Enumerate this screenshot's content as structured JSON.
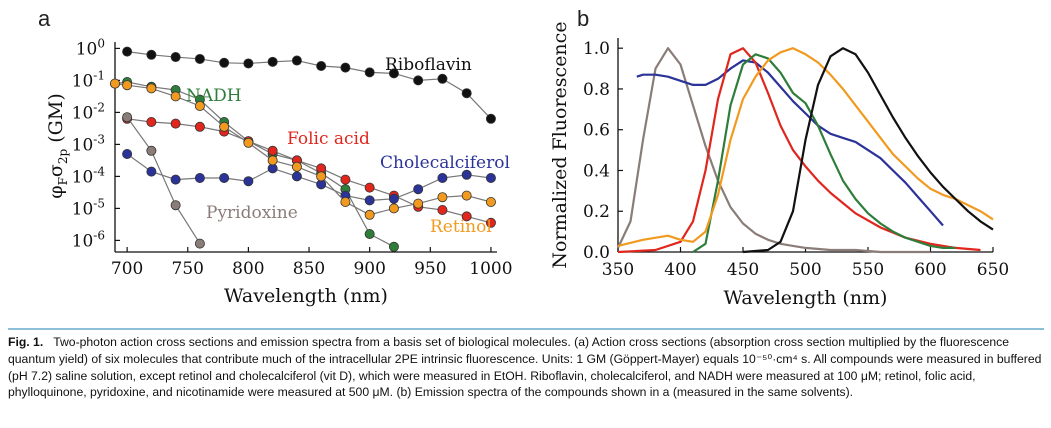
{
  "panel_a_label": "a",
  "panel_b_label": "b",
  "caption": {
    "figure_number": "Fig. 1.",
    "text": "Two-photon action cross sections and emission spectra from a basis set of biological molecules. (a) Action cross sections (absorption cross section multiplied by the fluorescence quantum yield) of six molecules that contribute much of the intracellular 2PE intrinsic fluorescence. Units: 1 GM (Göppert-Mayer) equals 10⁻⁵⁰·cm⁴ s. All compounds were measured in buffered (pH 7.2) saline solution, except retinol and cholecalciferol (vit D), which were measured in EtOH. Riboflavin, cholecalciferol, and NADH were measured at 100 μM; retinol, folic acid, phylloquinone, pyridoxine, and nicotinamide were measured at 500 μM. (b) Emission spectra of the compounds shown in a (measured in the same solvents)."
  },
  "chart_data": [
    {
      "type": "scatter",
      "panel": "a",
      "title": "",
      "xlabel": "Wavelength (nm)",
      "ylabel": "φFσ2p (GM)",
      "ylabel_parts": {
        "phi": "φ",
        "phi_sub": "F",
        "sigma": "σ",
        "sigma_sub": "2p",
        "unit": " (GM)"
      },
      "xlim": [
        690,
        1005
      ],
      "ylim_log10": [
        -6.3,
        0.2
      ],
      "xticks": [
        700,
        750,
        800,
        850,
        900,
        950,
        1000
      ],
      "yticks_exp": [
        0,
        -1,
        -2,
        -3,
        -4,
        -5,
        -6
      ],
      "ytick_base": "10",
      "series": [
        {
          "name": "Riboflavin",
          "color": "#111111",
          "x": [
            700,
            720,
            740,
            760,
            780,
            800,
            820,
            840,
            860,
            880,
            900,
            920,
            940,
            960,
            980,
            1000
          ],
          "y_log10": [
            -0.1,
            -0.2,
            -0.27,
            -0.33,
            -0.45,
            -0.47,
            -0.42,
            -0.38,
            -0.55,
            -0.6,
            -0.75,
            -0.78,
            -1.0,
            -0.95,
            -1.4,
            -2.2
          ],
          "label": "Riboflavin"
        },
        {
          "name": "NADH",
          "color": "#2e7d3a",
          "x": [
            690,
            700,
            720,
            740,
            760,
            780,
            800,
            820,
            840,
            860,
            880,
            900,
            920
          ],
          "y_log10": [
            -1.1,
            -1.05,
            -1.2,
            -1.3,
            -1.6,
            -2.3,
            -2.9,
            -3.3,
            -3.5,
            -3.9,
            -4.4,
            -5.8,
            -6.2
          ],
          "label": "NADH"
        },
        {
          "name": "Folic acid",
          "color": "#e0261d",
          "x": [
            700,
            720,
            740,
            760,
            780,
            800,
            820,
            840,
            860,
            880,
            900,
            920,
            940,
            960,
            980,
            1000
          ],
          "y_log10": [
            -2.2,
            -2.3,
            -2.35,
            -2.45,
            -2.6,
            -2.9,
            -3.2,
            -3.5,
            -3.75,
            -4.1,
            -4.35,
            -4.6,
            -4.95,
            -5.05,
            -5.25,
            -5.45
          ],
          "label": "Folic acid"
        },
        {
          "name": "Cholecalciferol",
          "color": "#2b3399",
          "x": [
            700,
            720,
            740,
            760,
            780,
            800,
            820,
            840,
            860,
            880,
            900,
            920,
            940,
            960,
            980,
            1000
          ],
          "y_log10": [
            -3.3,
            -3.85,
            -4.1,
            -4.05,
            -4.05,
            -4.15,
            -3.75,
            -4.0,
            -4.25,
            -4.6,
            -4.75,
            -4.7,
            -4.4,
            -4.05,
            -3.95,
            -4.05
          ],
          "label": "Cholecalciferol"
        },
        {
          "name": "Retinol",
          "color": "#f19a1f",
          "x": [
            690,
            700,
            720,
            740,
            760,
            780,
            800,
            820,
            840,
            860,
            880,
            900,
            920,
            940,
            960,
            980,
            1000
          ],
          "y_log10": [
            -1.1,
            -1.15,
            -1.25,
            -1.5,
            -1.8,
            -2.45,
            -2.95,
            -3.5,
            -3.7,
            -4.0,
            -4.8,
            -5.2,
            -5.0,
            -4.85,
            -4.65,
            -4.6,
            -4.8
          ],
          "label": "Retinol"
        },
        {
          "name": "Pyridoxine",
          "color": "#8a7d78",
          "x": [
            700,
            720,
            740,
            760
          ],
          "y_log10": [
            -2.15,
            -3.2,
            -4.9,
            -6.1
          ],
          "label": "Pyridoxine"
        }
      ]
    },
    {
      "type": "line",
      "panel": "b",
      "title": "",
      "xlabel": "Wavelength (nm)",
      "ylabel": "Normalized Fluorescence",
      "xlim": [
        350,
        650
      ],
      "ylim": [
        0,
        1.05
      ],
      "xticks": [
        350,
        400,
        450,
        500,
        550,
        600,
        650
      ],
      "yticks": [
        "0.0",
        "0.2",
        "0.4",
        "0.6",
        "0.8",
        "1.0"
      ],
      "series": [
        {
          "name": "Pyridoxine",
          "color": "#8a7d78",
          "x": [
            350,
            360,
            370,
            380,
            390,
            400,
            410,
            420,
            430,
            440,
            450,
            460,
            470,
            480,
            490,
            500,
            520,
            540,
            560,
            580,
            600
          ],
          "y": [
            0.02,
            0.15,
            0.55,
            0.9,
            1.0,
            0.92,
            0.72,
            0.52,
            0.35,
            0.22,
            0.14,
            0.09,
            0.06,
            0.04,
            0.03,
            0.02,
            0.01,
            0.01,
            0.0,
            0.0,
            0.0
          ]
        },
        {
          "name": "Cholecalciferol",
          "color": "#2b3399",
          "x": [
            365,
            370,
            380,
            390,
            400,
            410,
            420,
            430,
            440,
            450,
            460,
            470,
            480,
            490,
            500,
            510,
            520,
            530,
            540,
            550,
            560,
            570,
            580,
            590,
            600,
            610
          ],
          "y": [
            0.86,
            0.87,
            0.87,
            0.86,
            0.84,
            0.82,
            0.82,
            0.85,
            0.9,
            0.94,
            0.93,
            0.88,
            0.81,
            0.74,
            0.68,
            0.62,
            0.58,
            0.56,
            0.54,
            0.5,
            0.46,
            0.4,
            0.34,
            0.27,
            0.2,
            0.13
          ]
        },
        {
          "name": "Folic acid",
          "color": "#e0261d",
          "x": [
            350,
            380,
            400,
            410,
            420,
            430,
            440,
            450,
            460,
            470,
            480,
            490,
            500,
            510,
            520,
            530,
            540,
            560,
            580,
            600,
            620,
            640
          ],
          "y": [
            0.0,
            0.01,
            0.05,
            0.15,
            0.4,
            0.75,
            0.97,
            1.0,
            0.93,
            0.78,
            0.62,
            0.5,
            0.42,
            0.35,
            0.29,
            0.24,
            0.19,
            0.12,
            0.07,
            0.04,
            0.02,
            0.01
          ]
        },
        {
          "name": "NADH",
          "color": "#2e7d3a",
          "x": [
            410,
            420,
            430,
            440,
            450,
            460,
            470,
            480,
            490,
            500,
            510,
            520,
            530,
            540,
            550,
            560,
            570,
            580,
            590,
            600,
            610,
            620
          ],
          "y": [
            0.0,
            0.04,
            0.35,
            0.72,
            0.92,
            0.97,
            0.95,
            0.88,
            0.78,
            0.73,
            0.62,
            0.48,
            0.35,
            0.26,
            0.19,
            0.14,
            0.1,
            0.07,
            0.05,
            0.03,
            0.02,
            0.02
          ]
        },
        {
          "name": "Retinol",
          "color": "#f19a1f",
          "x": [
            350,
            370,
            390,
            400,
            410,
            420,
            430,
            440,
            450,
            460,
            470,
            480,
            490,
            500,
            510,
            520,
            530,
            540,
            550,
            560,
            570,
            580,
            590,
            600,
            610,
            620,
            630,
            640,
            650
          ],
          "y": [
            0.03,
            0.06,
            0.08,
            0.06,
            0.05,
            0.1,
            0.28,
            0.55,
            0.75,
            0.86,
            0.94,
            0.98,
            1.0,
            0.97,
            0.93,
            0.87,
            0.8,
            0.72,
            0.64,
            0.56,
            0.48,
            0.42,
            0.36,
            0.31,
            0.28,
            0.26,
            0.23,
            0.2,
            0.16
          ]
        },
        {
          "name": "Riboflavin",
          "color": "#111111",
          "x": [
            450,
            470,
            480,
            490,
            500,
            510,
            520,
            530,
            540,
            550,
            560,
            570,
            580,
            590,
            600,
            610,
            620,
            630,
            640,
            650
          ],
          "y": [
            0.0,
            0.01,
            0.05,
            0.2,
            0.55,
            0.82,
            0.96,
            1.0,
            0.97,
            0.88,
            0.77,
            0.66,
            0.56,
            0.47,
            0.39,
            0.32,
            0.26,
            0.2,
            0.15,
            0.11
          ]
        }
      ]
    }
  ]
}
